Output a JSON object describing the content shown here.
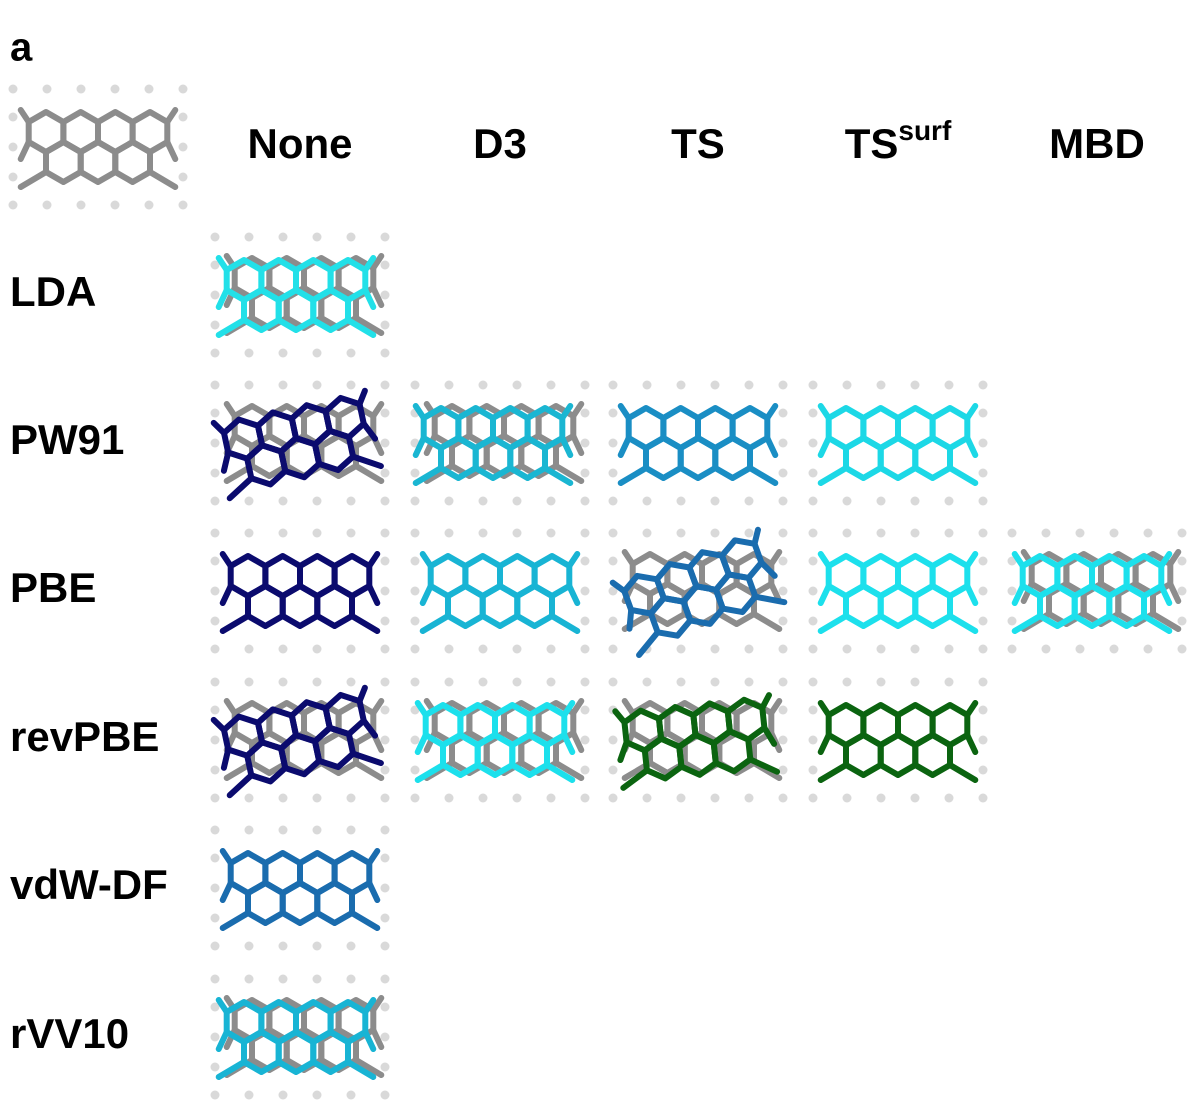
{
  "panel_label": "a",
  "columns": [
    {
      "label": "None"
    },
    {
      "label": "D3"
    },
    {
      "label": "TS"
    },
    {
      "label": "TS",
      "superscript": "surf"
    },
    {
      "label": "MBD"
    }
  ],
  "reference_color": "#8c8c8c",
  "rows": [
    {
      "label": "LDA",
      "cells": [
        {
          "color": "#22e0e8"
        },
        null,
        null,
        null,
        null
      ]
    },
    {
      "label": "PW91",
      "cells": [
        {
          "color": "#0b0b6e"
        },
        {
          "color": "#1ab6d2"
        },
        {
          "color": "#1a8ec4"
        },
        {
          "color": "#1cd8e6"
        },
        null
      ]
    },
    {
      "label": "PBE",
      "cells": [
        {
          "color": "#0b0b6e"
        },
        {
          "color": "#18b4d4"
        },
        {
          "color": "#1a6cae"
        },
        {
          "color": "#1ce0ec"
        },
        {
          "color": "#1ce0ec"
        }
      ]
    },
    {
      "label": "revPBE",
      "cells": [
        {
          "color": "#0b0b6e"
        },
        {
          "color": "#1ce0ec"
        },
        {
          "color": "#0b6410"
        },
        {
          "color": "#0b6410"
        },
        null
      ]
    },
    {
      "label": "vdW-DF",
      "cells": [
        {
          "color": "#1a6cae"
        },
        null,
        null,
        null,
        null
      ]
    },
    {
      "label": "rVV10",
      "cells": [
        {
          "color": "#18b4d4"
        },
        null,
        null,
        null,
        null
      ]
    }
  ]
}
